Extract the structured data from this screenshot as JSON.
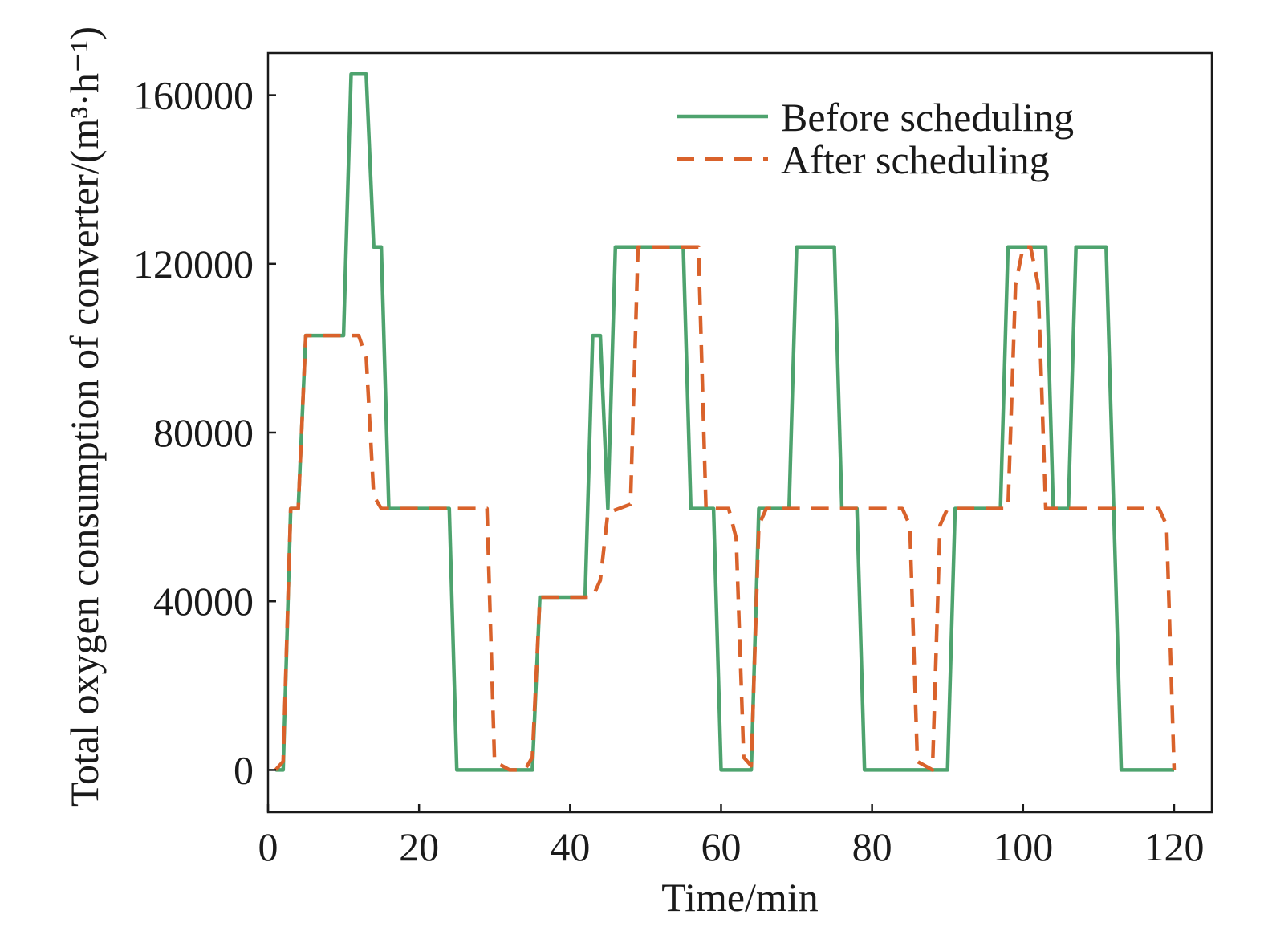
{
  "chart_data": {
    "type": "line",
    "xlabel": "Time/min",
    "ylabel": "Total oxygen consumption of converter/(m³·h⁻¹)",
    "xlim": [
      0,
      125
    ],
    "ylim": [
      -10000,
      170000
    ],
    "xticks": [
      0,
      20,
      40,
      60,
      80,
      100,
      120
    ],
    "yticks": [
      0,
      40000,
      80000,
      120000,
      160000
    ],
    "x_tick_labels": [
      "0",
      "20",
      "40",
      "60",
      "80",
      "100",
      "120"
    ],
    "y_tick_labels": [
      "0",
      "40000",
      "80000",
      "120000",
      "160000"
    ],
    "legend_position": "top-right",
    "grid": false,
    "series": [
      {
        "name": "Before scheduling",
        "color": "#4ea36e",
        "style": "solid",
        "points": [
          [
            1,
            0
          ],
          [
            2,
            0
          ],
          [
            3,
            62000
          ],
          [
            4,
            62000
          ],
          [
            5,
            103000
          ],
          [
            10,
            103000
          ],
          [
            11,
            165000
          ],
          [
            13,
            165000
          ],
          [
            14,
            124000
          ],
          [
            15,
            124000
          ],
          [
            16,
            62000
          ],
          [
            24,
            62000
          ],
          [
            25,
            0
          ],
          [
            35,
            0
          ],
          [
            36,
            41000
          ],
          [
            42,
            41000
          ],
          [
            43,
            103000
          ],
          [
            44,
            103000
          ],
          [
            45,
            62000
          ],
          [
            46,
            124000
          ],
          [
            55,
            124000
          ],
          [
            56,
            62000
          ],
          [
            59,
            62000
          ],
          [
            60,
            0
          ],
          [
            64,
            0
          ],
          [
            65,
            62000
          ],
          [
            69,
            62000
          ],
          [
            70,
            124000
          ],
          [
            75,
            124000
          ],
          [
            76,
            62000
          ],
          [
            78,
            62000
          ],
          [
            79,
            0
          ],
          [
            90,
            0
          ],
          [
            91,
            62000
          ],
          [
            97,
            62000
          ],
          [
            98,
            124000
          ],
          [
            103,
            124000
          ],
          [
            104,
            62000
          ],
          [
            106,
            62000
          ],
          [
            107,
            124000
          ],
          [
            111,
            124000
          ],
          [
            112,
            62000
          ],
          [
            113,
            0
          ],
          [
            120,
            0
          ]
        ]
      },
      {
        "name": "After scheduling",
        "color": "#d9622b",
        "style": "dashed",
        "points": [
          [
            1,
            0
          ],
          [
            2,
            2000
          ],
          [
            3,
            62000
          ],
          [
            4,
            62000
          ],
          [
            5,
            103000
          ],
          [
            12,
            103000
          ],
          [
            13,
            98000
          ],
          [
            14,
            65000
          ],
          [
            15,
            62000
          ],
          [
            29,
            62000
          ],
          [
            30,
            2000
          ],
          [
            32,
            0
          ],
          [
            34,
            0
          ],
          [
            35,
            3000
          ],
          [
            36,
            41000
          ],
          [
            43,
            41000
          ],
          [
            44,
            45000
          ],
          [
            45,
            61000
          ],
          [
            48,
            63000
          ],
          [
            49,
            124000
          ],
          [
            57,
            124000
          ],
          [
            58,
            62000
          ],
          [
            61,
            62000
          ],
          [
            62,
            55000
          ],
          [
            63,
            3000
          ],
          [
            64,
            1000
          ],
          [
            65,
            58000
          ],
          [
            66,
            62000
          ],
          [
            84,
            62000
          ],
          [
            85,
            58000
          ],
          [
            86,
            2000
          ],
          [
            88,
            0
          ],
          [
            89,
            58000
          ],
          [
            90,
            62000
          ],
          [
            98,
            62000
          ],
          [
            99,
            115000
          ],
          [
            100,
            124000
          ],
          [
            101,
            124000
          ],
          [
            102,
            115000
          ],
          [
            103,
            62000
          ],
          [
            118,
            62000
          ],
          [
            119,
            58000
          ],
          [
            120,
            0
          ]
        ]
      }
    ]
  }
}
